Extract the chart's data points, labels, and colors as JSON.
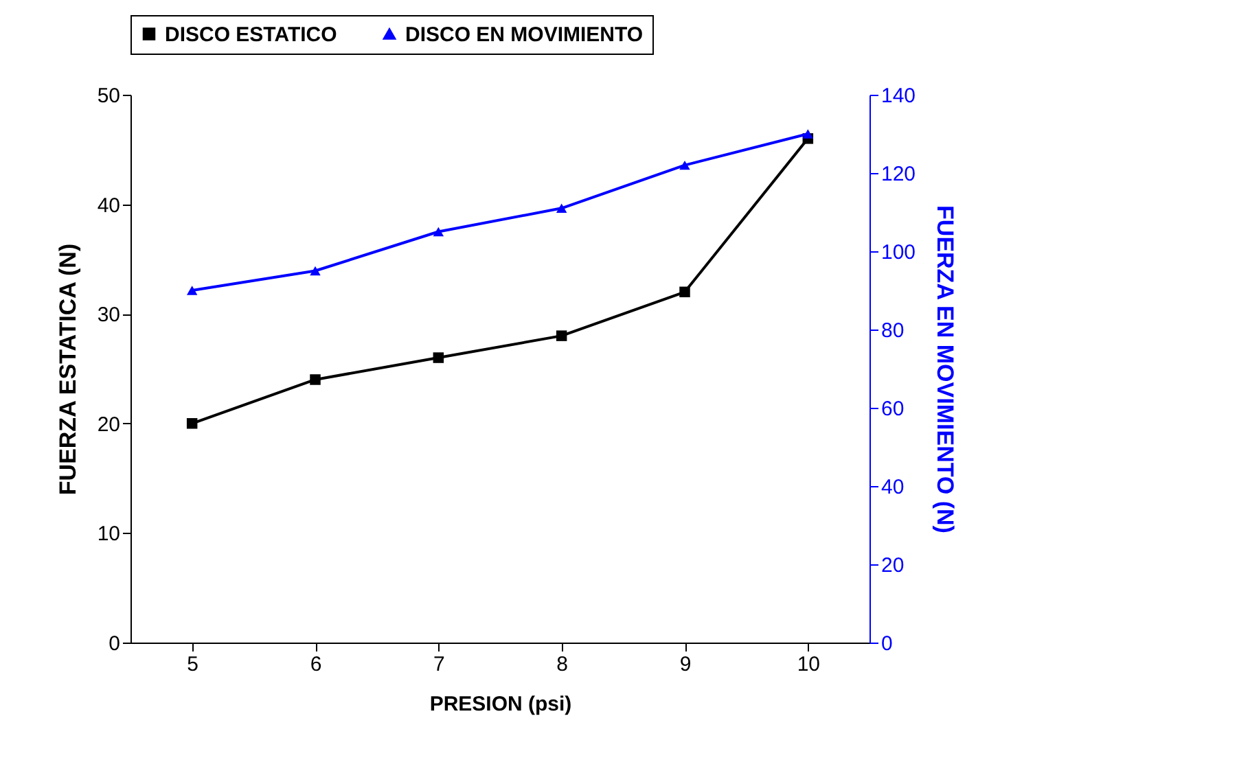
{
  "chart_data": {
    "type": "line",
    "xlabel": "PRESION (psi)",
    "ylabel": "FUERZA ESTATICA (N)",
    "y2label": "FUERZA EN MOVIMIENTO (N)",
    "x": [
      5,
      6,
      7,
      8,
      9,
      10
    ],
    "series": [
      {
        "name": "DISCO ESTATICO",
        "color": "#000000",
        "marker": "square",
        "values": [
          20,
          24,
          26,
          28,
          32,
          46
        ]
      },
      {
        "name": "DISCO EN MOVIMIENTO",
        "color": "#0000ff",
        "marker": "triangle",
        "axis": "y2",
        "values": [
          90,
          95,
          105,
          111,
          122,
          130
        ]
      }
    ],
    "xlim": [
      4.5,
      10.5
    ],
    "xticks": [
      5,
      6,
      7,
      8,
      9,
      10
    ],
    "ylim": [
      0,
      50
    ],
    "yticks": [
      0,
      10,
      20,
      30,
      40,
      50
    ],
    "y2lim": [
      0,
      140
    ],
    "y2ticks": [
      0,
      20,
      40,
      60,
      80,
      100,
      120,
      140
    ],
    "grid": false,
    "legend": "top",
    "line_style": "solid"
  }
}
